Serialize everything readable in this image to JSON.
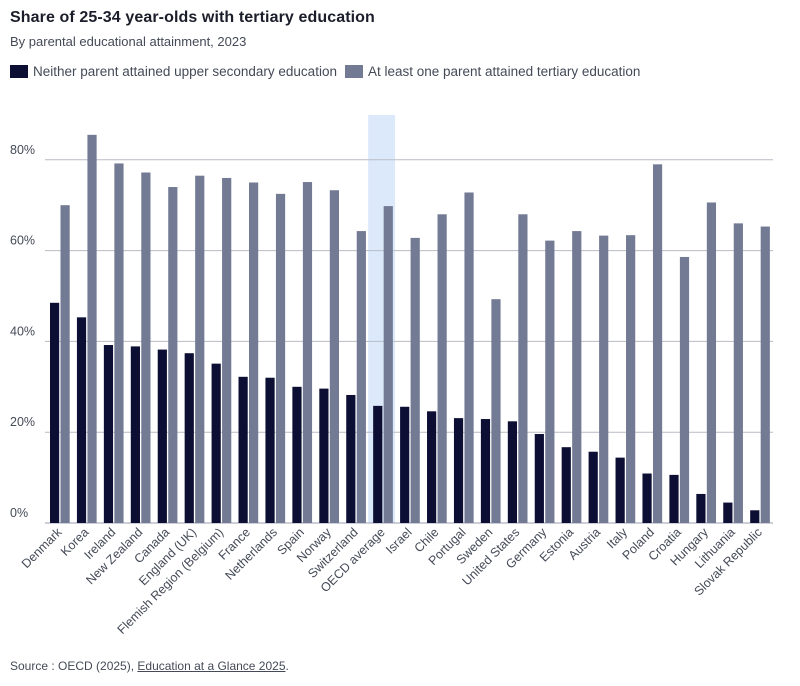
{
  "chart_data": {
    "type": "bar",
    "title": "Share of 25-34 year-olds with tertiary education",
    "subtitle": "By parental educational attainment, 2023",
    "categories": [
      "Denmark",
      "Korea",
      "Ireland",
      "New Zealand",
      "Canada",
      "England (UK)",
      "Flemish Region (Belgium)",
      "France",
      "Netherlands",
      "Spain",
      "Norway",
      "Switzerland",
      "OECD average",
      "Israel",
      "Chile",
      "Portugal",
      "Sweden",
      "United States",
      "Germany",
      "Estonia",
      "Austria",
      "Italy",
      "Poland",
      "Croatia",
      "Hungary",
      "Lithuania",
      "Slovak Republic"
    ],
    "highlight_category": "OECD average",
    "series": [
      {
        "name": "Neither parent attained upper secondary education",
        "color": "#0c0f33",
        "values": [
          48.5,
          45.3,
          39.2,
          38.9,
          38.2,
          37.4,
          35.1,
          32.2,
          32.0,
          30.0,
          29.6,
          28.2,
          25.8,
          25.6,
          24.6,
          23.1,
          22.9,
          22.4,
          19.6,
          16.7,
          15.7,
          14.4,
          10.9,
          10.6,
          6.4,
          4.5,
          2.8
        ]
      },
      {
        "name": "At least one parent attained tertiary education",
        "color": "#737a94",
        "values": [
          70.0,
          85.5,
          79.2,
          77.2,
          74.0,
          76.5,
          76.0,
          75.0,
          72.5,
          75.1,
          73.3,
          64.3,
          69.8,
          62.8,
          68.0,
          72.8,
          49.3,
          68.0,
          62.2,
          64.3,
          63.3,
          63.4,
          79.0,
          58.6,
          70.6,
          66.0,
          65.3
        ]
      }
    ],
    "yticks": [
      "0%",
      "20%",
      "40%",
      "60%",
      "80%"
    ],
    "ytick_values": [
      0,
      20,
      40,
      60,
      80
    ],
    "ylim": [
      0,
      90
    ],
    "grid": true,
    "legend_position": "top-left"
  },
  "source": {
    "prefix": "Source : OECD (2025), ",
    "link_text": "Education at a Glance 2025",
    "suffix": "."
  }
}
